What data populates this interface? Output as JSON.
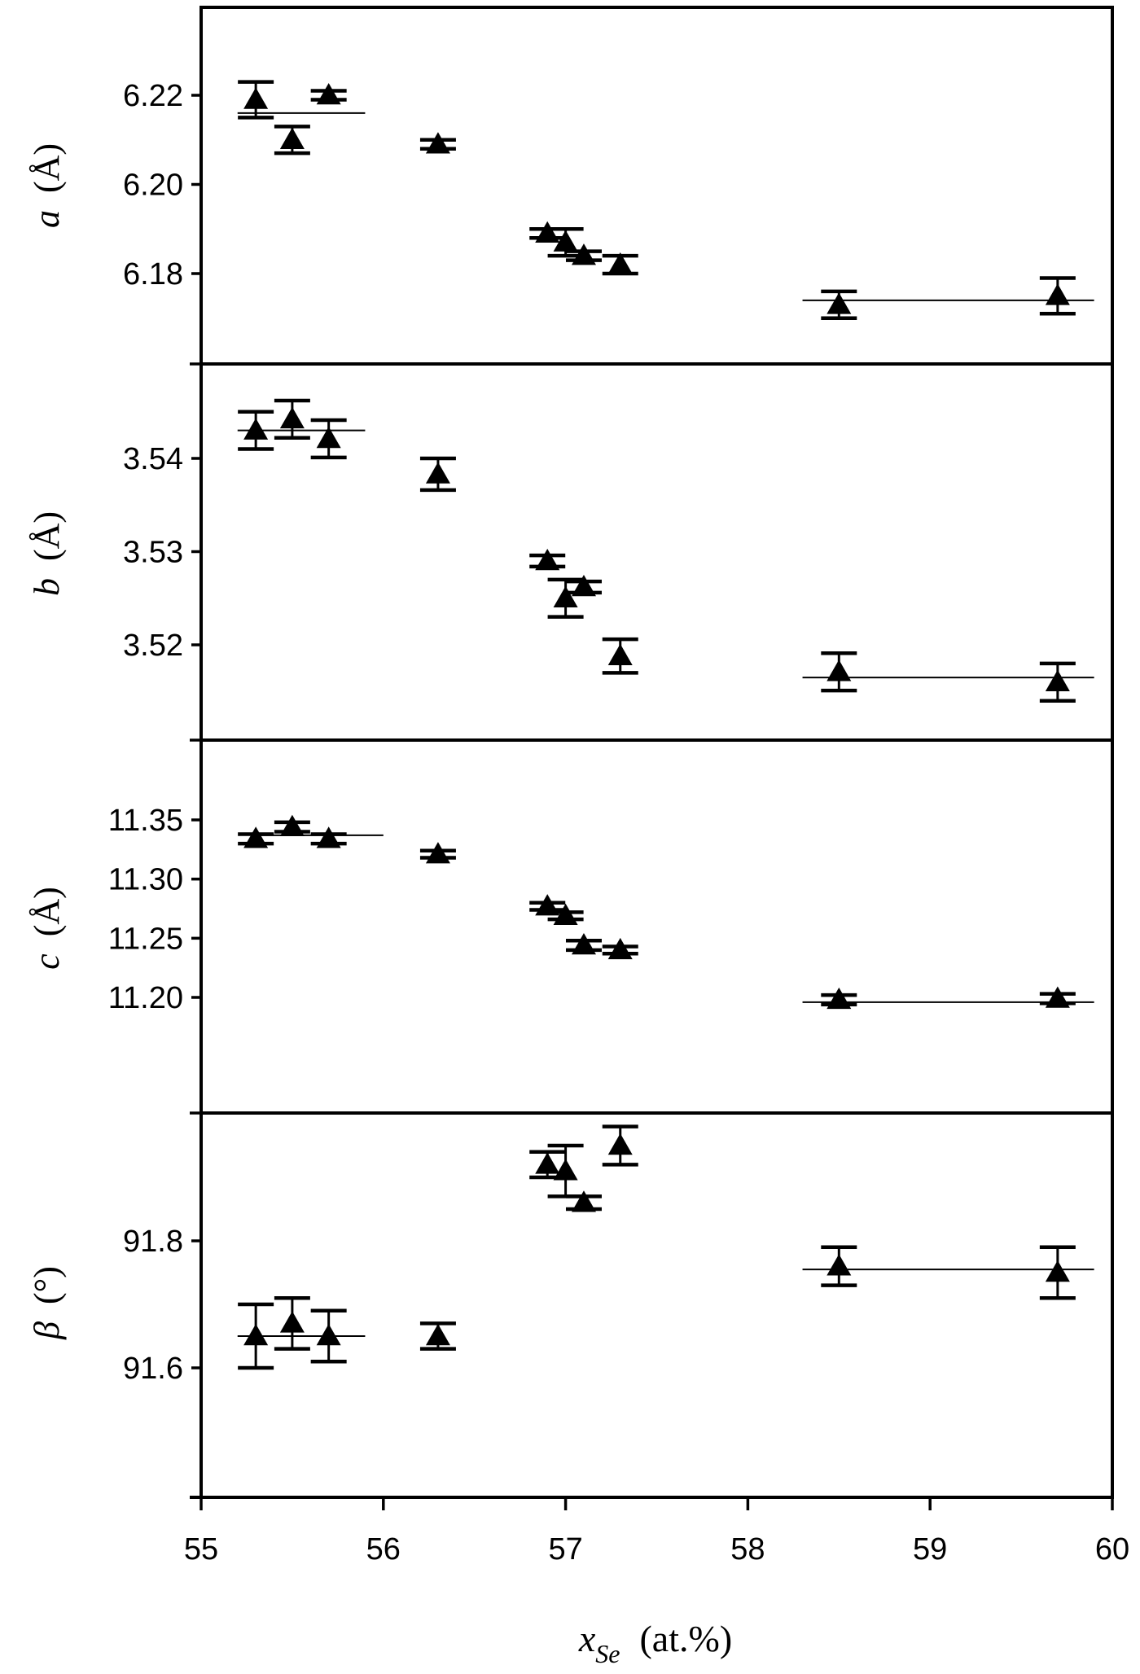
{
  "figure": {
    "x_axis": {
      "label_var": "x",
      "label_sub": "Se",
      "label_unit": "(at.%)",
      "ticks": [
        "55",
        "56",
        "57",
        "58",
        "59",
        "60"
      ]
    },
    "panels": [
      {
        "id": "a",
        "label_var": "a",
        "label_unit": "(Å)",
        "ticks": [
          "6.22",
          "6.20",
          "6.18"
        ]
      },
      {
        "id": "b",
        "label_var": "b",
        "label_unit": "(Å)",
        "ticks": [
          "3.54",
          "3.53",
          "3.52"
        ]
      },
      {
        "id": "c",
        "label_var": "c",
        "label_unit": "(Å)",
        "ticks": [
          "11.35",
          "11.30",
          "11.25",
          "11.20"
        ]
      },
      {
        "id": "beta",
        "label_var": "β",
        "label_unit": "(°)",
        "ticks": [
          "91.8",
          "91.6"
        ]
      }
    ]
  },
  "chart_data": [
    {
      "type": "scatter",
      "title": "",
      "xlabel": "x_Se (at.%)",
      "ylabel": "a (Å)",
      "xlim": [
        55,
        60
      ],
      "ylim": [
        6.167,
        6.235
      ],
      "yticks": [
        6.18,
        6.2,
        6.22
      ],
      "marker": "filled triangle",
      "x": [
        55.3,
        55.5,
        55.7,
        56.3,
        56.9,
        57.0,
        57.1,
        57.3,
        58.5,
        59.7
      ],
      "y": [
        6.219,
        6.21,
        6.22,
        6.209,
        6.189,
        6.187,
        6.184,
        6.182,
        6.173,
        6.175
      ],
      "yerr": [
        0.004,
        0.003,
        0.001,
        0.001,
        0.001,
        0.003,
        0.001,
        0.002,
        0.003,
        0.004
      ],
      "fit_lines": [
        {
          "x": [
            55.2,
            55.9
          ],
          "y": [
            6.216,
            6.216
          ]
        },
        {
          "x": [
            58.3,
            59.9
          ],
          "y": [
            6.174,
            6.174
          ]
        }
      ],
      "grid": false
    },
    {
      "type": "scatter",
      "title": "",
      "xlabel": "x_Se (at.%)",
      "ylabel": "b (Å)",
      "xlim": [
        55,
        60
      ],
      "ylim": [
        3.51,
        3.55
      ],
      "yticks": [
        3.52,
        3.53,
        3.54
      ],
      "marker": "filled triangle",
      "x": [
        55.3,
        55.5,
        55.7,
        56.3,
        56.9,
        57.0,
        57.1,
        57.3,
        58.5,
        59.7
      ],
      "y": [
        3.543,
        3.5442,
        3.5421,
        3.5383,
        3.529,
        3.525,
        3.5262,
        3.5188,
        3.5171,
        3.516
      ],
      "yerr": [
        0.002,
        0.002,
        0.002,
        0.0017,
        0.0006,
        0.002,
        0.0006,
        0.0018,
        0.002,
        0.002
      ],
      "fit_lines": [
        {
          "x": [
            55.2,
            55.9
          ],
          "y": [
            3.543,
            3.543
          ]
        },
        {
          "x": [
            58.3,
            59.9
          ],
          "y": [
            3.5165,
            3.5165
          ]
        }
      ],
      "grid": false
    },
    {
      "type": "scatter",
      "title": "",
      "xlabel": "x_Se (at.%)",
      "ylabel": "c (Å)",
      "xlim": [
        55,
        60
      ],
      "ylim": [
        11.15,
        11.4
      ],
      "yticks": [
        11.2,
        11.25,
        11.3,
        11.35
      ],
      "marker": "filled triangle",
      "x": [
        55.3,
        55.5,
        55.7,
        56.3,
        56.9,
        57.0,
        57.1,
        57.3,
        58.5,
        59.7
      ],
      "y": [
        11.334,
        11.344,
        11.334,
        11.321,
        11.277,
        11.269,
        11.244,
        11.24,
        11.198,
        11.199
      ],
      "yerr": [
        0.004,
        0.004,
        0.004,
        0.003,
        0.003,
        0.003,
        0.004,
        0.003,
        0.004,
        0.004
      ],
      "fit_lines": [
        {
          "x": [
            55.3,
            56.0
          ],
          "y": [
            11.337,
            11.337
          ]
        },
        {
          "x": [
            58.3,
            59.9
          ],
          "y": [
            11.196,
            11.196
          ]
        }
      ],
      "grid": false
    },
    {
      "type": "scatter",
      "title": "",
      "xlabel": "x_Se (at.%)",
      "ylabel": "β (°)",
      "xlim": [
        55,
        60
      ],
      "ylim": [
        91.44,
        91.99
      ],
      "yticks": [
        91.6,
        91.8
      ],
      "marker": "filled triangle",
      "x": [
        55.3,
        55.5,
        55.7,
        56.3,
        56.9,
        57.0,
        57.1,
        57.3,
        58.5,
        59.7
      ],
      "y": [
        91.65,
        91.67,
        91.65,
        91.65,
        91.92,
        91.91,
        91.86,
        91.95,
        91.76,
        91.75
      ],
      "yerr": [
        0.05,
        0.04,
        0.04,
        0.02,
        0.02,
        0.04,
        0.01,
        0.03,
        0.03,
        0.04
      ],
      "fit_lines": [
        {
          "x": [
            55.2,
            55.9
          ],
          "y": [
            91.65,
            91.65
          ]
        },
        {
          "x": [
            58.3,
            59.9
          ],
          "y": [
            91.755,
            91.755
          ]
        }
      ],
      "grid": false
    }
  ]
}
